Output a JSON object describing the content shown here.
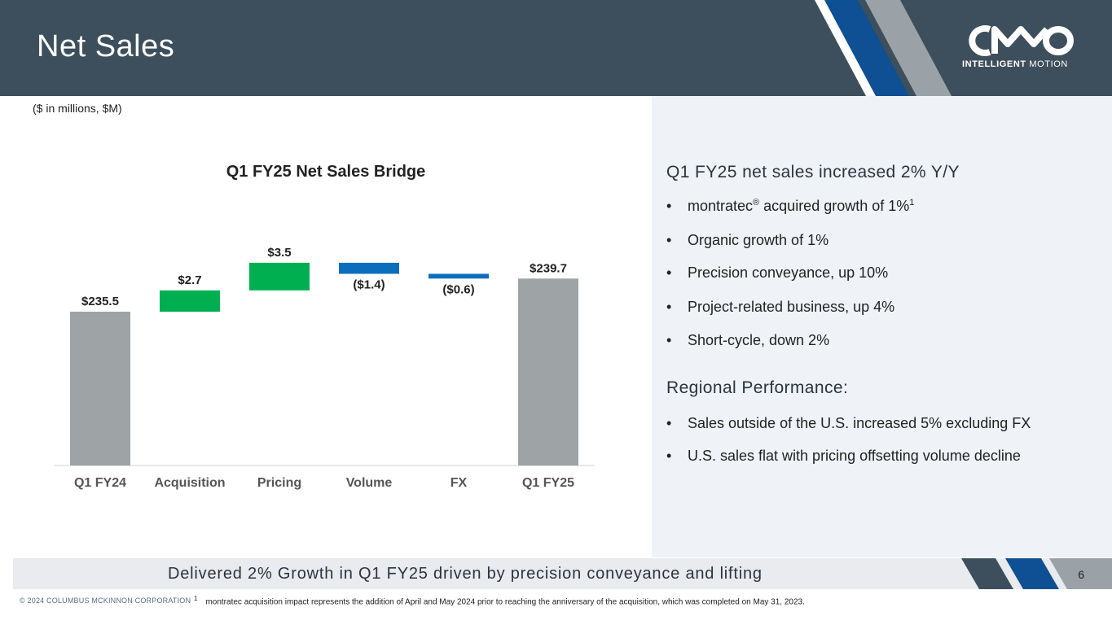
{
  "header": {
    "title": "Net Sales",
    "logo": {
      "text_bold": "INTELLIGENT",
      "text_light": "MOTION",
      "mark_alt": "CMCO"
    }
  },
  "units_note": "($ in millions, $M)",
  "colors": {
    "header_bg": "#3d4f5c",
    "stripe_blue": "#0f4f93",
    "stripe_gray": "#9aa2a8",
    "bar_gray": "#9ea3a6",
    "bar_green": "#00b050",
    "bar_blue": "#0a6ebd"
  },
  "chart_data": {
    "type": "waterfall",
    "title": "Q1 FY25 Net Sales Bridge",
    "categories": [
      "Q1 FY24",
      "Acquisition",
      "Pricing",
      "Volume",
      "FX",
      "Q1 FY25"
    ],
    "values": [
      235.5,
      2.7,
      3.5,
      -1.4,
      -0.6,
      239.7
    ],
    "kinds": [
      "total",
      "increase",
      "increase",
      "decrease",
      "decrease",
      "total"
    ],
    "labels": [
      "$235.5",
      "$2.7",
      "$3.5",
      "($1.4)",
      "($0.6)",
      "$239.7"
    ],
    "ylim": [
      216,
      242
    ],
    "xlabel": "",
    "ylabel": ""
  },
  "right_panel": {
    "heading1": "Q1 FY25 net sales increased 2% Y/Y",
    "bullets1": [
      {
        "text": "montratec",
        "reg": "®",
        "rest": " acquired growth of 1%",
        "sup": "1"
      },
      {
        "text": "Organic growth of 1%"
      },
      {
        "text": "Precision conveyance, up 10%"
      },
      {
        "text": "Project-related business, up 4%"
      },
      {
        "text": "Short-cycle, down 2%"
      }
    ],
    "heading2": "Regional Performance:",
    "bullets2": [
      {
        "text": "Sales outside of the U.S. increased 5% excluding FX"
      },
      {
        "text": "U.S. sales flat with pricing offsetting volume decline"
      }
    ],
    "bullet_char": "•"
  },
  "footer": {
    "tagline": "Delivered 2% Growth in Q1 FY25 driven by precision conveyance and lifting",
    "page_number": "6",
    "copyright": "© 2024 COLUMBUS MCKINNON CORPORATION",
    "footnote_marker": "1",
    "footnote": "montratec acquisition impact represents the addition of April and May 2024 prior to reaching the anniversary of the acquisition, which was completed on May 31, 2023."
  }
}
